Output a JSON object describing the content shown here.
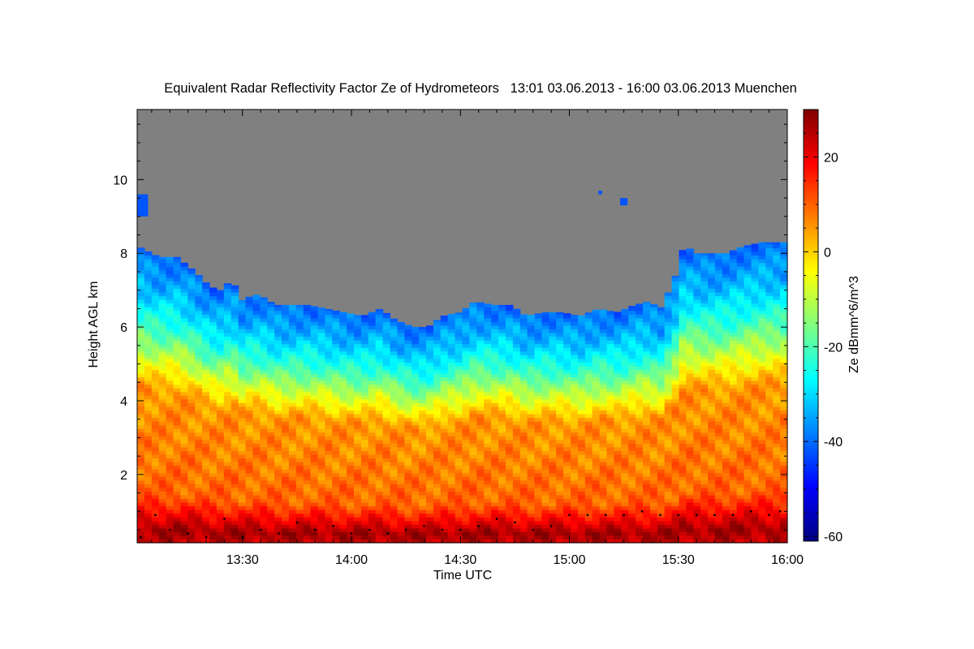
{
  "chart_data": {
    "type": "heatmap",
    "title": "Equivalent Radar Reflectivity Factor Ze of Hydrometeors   13:01 03.06.2013 - 16:00 03.06.2013 Muenchen",
    "xlabel": "Time UTC",
    "ylabel": "Height AGL km",
    "colorbar_label": "Ze dBmm^6/m^3",
    "x_range_minutes": [
      781,
      960
    ],
    "x_ticks": [
      {
        "label": "13:30",
        "minutes": 810
      },
      {
        "label": "14:00",
        "minutes": 840
      },
      {
        "label": "14:30",
        "minutes": 870
      },
      {
        "label": "15:00",
        "minutes": 900
      },
      {
        "label": "15:30",
        "minutes": 930
      },
      {
        "label": "16:00",
        "minutes": 960
      }
    ],
    "y_range": [
      0.15,
      11.9
    ],
    "y_ticks": [
      2,
      4,
      6,
      8,
      10
    ],
    "colorbar_range": [
      -61,
      30
    ],
    "colorbar_ticks": [
      20,
      0,
      -20,
      -40,
      -60
    ],
    "colormap": [
      "#00007f",
      "#0000ff",
      "#007fff",
      "#00ffff",
      "#7fff7f",
      "#ffff00",
      "#ff7f00",
      "#ff0000",
      "#7f0000"
    ],
    "no_data_color": "#808080",
    "echo_top_km": [
      {
        "t": 781,
        "h": 8.2
      },
      {
        "t": 787,
        "h": 7.9
      },
      {
        "t": 792,
        "h": 7.9
      },
      {
        "t": 797,
        "h": 7.5
      },
      {
        "t": 801,
        "h": 7.1
      },
      {
        "t": 804,
        "h": 7.0
      },
      {
        "t": 807,
        "h": 7.3
      },
      {
        "t": 810,
        "h": 6.7
      },
      {
        "t": 813,
        "h": 6.9
      },
      {
        "t": 816,
        "h": 6.8
      },
      {
        "t": 819,
        "h": 6.6
      },
      {
        "t": 823,
        "h": 6.6
      },
      {
        "t": 828,
        "h": 6.6
      },
      {
        "t": 833,
        "h": 6.5
      },
      {
        "t": 838,
        "h": 6.4
      },
      {
        "t": 843,
        "h": 6.3
      },
      {
        "t": 848,
        "h": 6.5
      },
      {
        "t": 852,
        "h": 6.2
      },
      {
        "t": 857,
        "h": 6.0
      },
      {
        "t": 861,
        "h": 6.0
      },
      {
        "t": 865,
        "h": 6.3
      },
      {
        "t": 870,
        "h": 6.4
      },
      {
        "t": 874,
        "h": 6.7
      },
      {
        "t": 879,
        "h": 6.6
      },
      {
        "t": 884,
        "h": 6.6
      },
      {
        "t": 888,
        "h": 6.3
      },
      {
        "t": 893,
        "h": 6.4
      },
      {
        "t": 898,
        "h": 6.4
      },
      {
        "t": 903,
        "h": 6.3
      },
      {
        "t": 908,
        "h": 6.5
      },
      {
        "t": 913,
        "h": 6.4
      },
      {
        "t": 918,
        "h": 6.6
      },
      {
        "t": 922,
        "h": 6.7
      },
      {
        "t": 925,
        "h": 6.5
      },
      {
        "t": 927,
        "h": 6.9
      },
      {
        "t": 929,
        "h": 7.3
      },
      {
        "t": 930,
        "h": 7.8
      },
      {
        "t": 932,
        "h": 8.3
      },
      {
        "t": 934,
        "h": 8.0
      },
      {
        "t": 938,
        "h": 8.0
      },
      {
        "t": 943,
        "h": 8.0
      },
      {
        "t": 948,
        "h": 8.2
      },
      {
        "t": 953,
        "h": 8.3
      },
      {
        "t": 960,
        "h": 8.3
      }
    ],
    "echo_patches": [
      {
        "t0": 781,
        "t1": 784,
        "h0": 9.0,
        "h1": 9.6
      },
      {
        "t0": 914,
        "t1": 916,
        "h0": 9.3,
        "h1": 9.5
      },
      {
        "t0": 908,
        "t1": 909,
        "h0": 9.6,
        "h1": 9.7
      }
    ],
    "profile_dbz": [
      {
        "h": 0.2,
        "ze": 24
      },
      {
        "h": 0.5,
        "ze": 27
      },
      {
        "h": 0.9,
        "ze": 20
      },
      {
        "h": 1.5,
        "ze": 10
      },
      {
        "h": 3.0,
        "ze": 7
      },
      {
        "h": 4.3,
        "ze": 5
      },
      {
        "h": 5.0,
        "ze": -6
      },
      {
        "h": 6.0,
        "ze": -22
      },
      {
        "h": 7.0,
        "ze": -33
      },
      {
        "h": 8.0,
        "ze": -40
      }
    ],
    "cloud_base_km": [
      {
        "t": 782,
        "h": 0.3
      },
      {
        "t": 786,
        "h": 0.9
      },
      {
        "t": 790,
        "h": 0.5
      },
      {
        "t": 795,
        "h": 0.4
      },
      {
        "t": 800,
        "h": 0.3
      },
      {
        "t": 805,
        "h": 0.8
      },
      {
        "t": 810,
        "h": 0.3
      },
      {
        "t": 815,
        "h": 0.5
      },
      {
        "t": 820,
        "h": 0.4
      },
      {
        "t": 825,
        "h": 0.7
      },
      {
        "t": 830,
        "h": 0.5
      },
      {
        "t": 835,
        "h": 0.6
      },
      {
        "t": 840,
        "h": 0.4
      },
      {
        "t": 845,
        "h": 0.5
      },
      {
        "t": 850,
        "h": 0.4
      },
      {
        "t": 855,
        "h": 0.5
      },
      {
        "t": 860,
        "h": 0.6
      },
      {
        "t": 865,
        "h": 0.5
      },
      {
        "t": 870,
        "h": 0.5
      },
      {
        "t": 875,
        "h": 0.6
      },
      {
        "t": 880,
        "h": 0.8
      },
      {
        "t": 885,
        "h": 0.7
      },
      {
        "t": 890,
        "h": 0.5
      },
      {
        "t": 895,
        "h": 0.6
      },
      {
        "t": 900,
        "h": 0.9
      },
      {
        "t": 905,
        "h": 0.9
      },
      {
        "t": 910,
        "h": 0.9
      },
      {
        "t": 915,
        "h": 0.9
      },
      {
        "t": 920,
        "h": 1.0
      },
      {
        "t": 925,
        "h": 0.9
      },
      {
        "t": 930,
        "h": 0.9
      },
      {
        "t": 935,
        "h": 0.9
      },
      {
        "t": 940,
        "h": 0.9
      },
      {
        "t": 945,
        "h": 0.9
      },
      {
        "t": 950,
        "h": 1.0
      },
      {
        "t": 955,
        "h": 0.9
      },
      {
        "t": 958,
        "h": 1.0
      }
    ]
  }
}
